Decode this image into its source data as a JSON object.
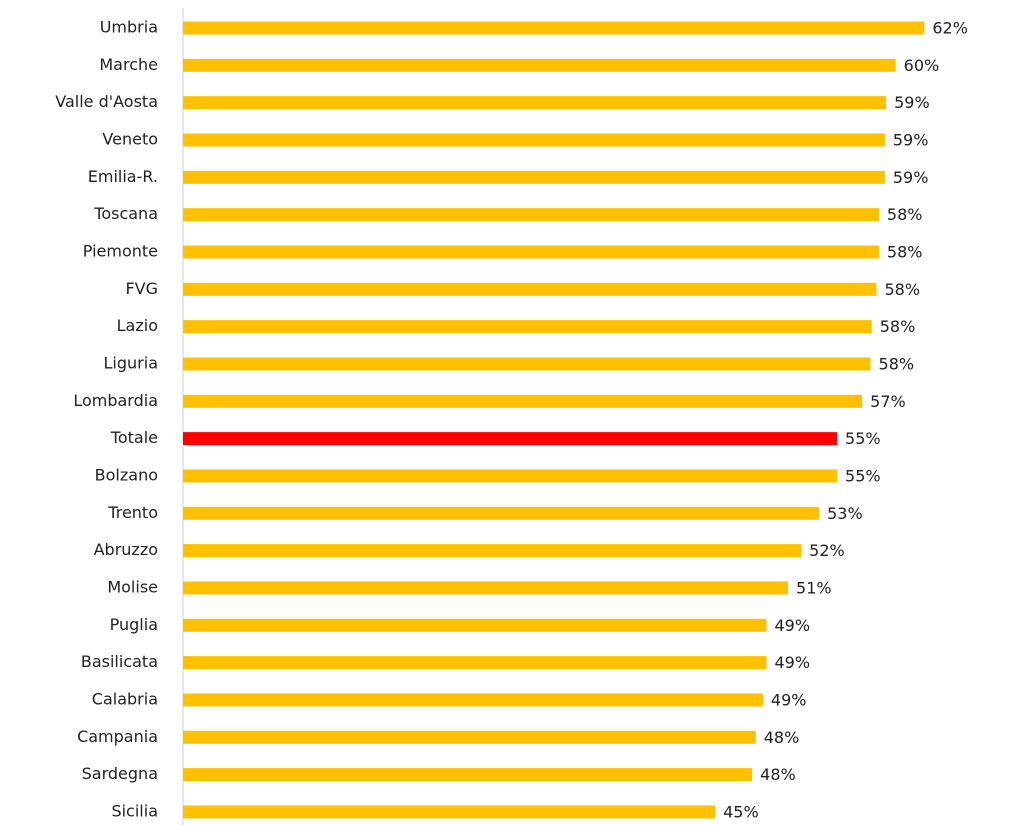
{
  "chart_data": {
    "type": "hbar",
    "categories": [
      "Umbria",
      "Marche",
      "Valle d'Aosta",
      "Veneto",
      "Emilia-R.",
      "Toscana",
      "Piemonte",
      "FVG",
      "Lazio",
      "Liguria",
      "Lombardia",
      "Totale",
      "Bolzano",
      "Trento",
      "Abruzzo",
      "Molise",
      "Puglia",
      "Basilicata",
      "Calabria",
      "Campania",
      "Sardegna",
      "Sicilia"
    ],
    "values": [
      62.0,
      59.6,
      58.8,
      58.7,
      58.7,
      58.2,
      58.2,
      58.0,
      57.6,
      57.5,
      56.8,
      54.7,
      54.7,
      53.2,
      51.7,
      50.6,
      48.8,
      48.8,
      48.5,
      47.9,
      47.6,
      44.5
    ],
    "value_labels": [
      "62%",
      "60%",
      "59%",
      "59%",
      "59%",
      "58%",
      "58%",
      "58%",
      "58%",
      "58%",
      "57%",
      "55%",
      "55%",
      "53%",
      "52%",
      "51%",
      "49%",
      "49%",
      "49%",
      "48%",
      "48%",
      "45%"
    ],
    "colors": [
      "#FFC000",
      "#FFC000",
      "#FFC000",
      "#FFC000",
      "#FFC000",
      "#FFC000",
      "#FFC000",
      "#FFC000",
      "#FFC000",
      "#FFC000",
      "#FFC000",
      "#FF0000",
      "#FFC000",
      "#FFC000",
      "#FFC000",
      "#FFC000",
      "#FFC000",
      "#FFC000",
      "#FFC000",
      "#FFC000",
      "#FFC000",
      "#FFC000"
    ],
    "xlim": [
      0,
      70
    ]
  }
}
